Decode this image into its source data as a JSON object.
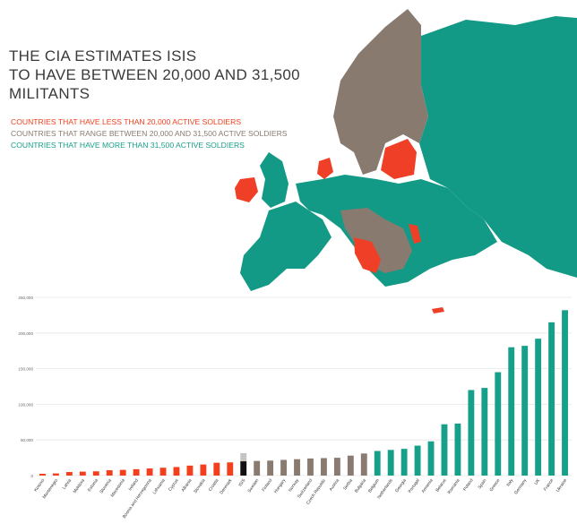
{
  "title": {
    "line1": "THE CIA ESTIMATES ISIS",
    "line2": "TO HAVE BETWEEN 20,000 AND 31,500",
    "line3": "MILITANTS"
  },
  "legend": [
    {
      "text": "COUNTRIES THAT HAVE LESS THAN 20,000 ACTIVE SOLDIERS",
      "color": "#f2401e"
    },
    {
      "text": "COUNTRIES THAT RANGE BETWEEN  20,000  AND 31,500 ACTIVE SOLDIERS",
      "color": "#8a7b70"
    },
    {
      "text": "COUNTRIES THAT HAVE  MORE THAN 31,500 ACTIVE SOLDIERS",
      "color": "#16a08a"
    }
  ],
  "colors": {
    "red": "#f2401e",
    "brown": "#8a7b70",
    "teal": "#16a08a",
    "black": "#111111",
    "isis_range": "#c4c4c4",
    "grid": "#e6e6e6",
    "map_teal": "#139a86",
    "map_brown": "#897a6f",
    "map_red": "#ef3f26"
  },
  "chart_data": {
    "type": "bar",
    "title": "",
    "xlabel": "",
    "ylabel": "",
    "ylim": [
      0,
      250000
    ],
    "yticks": [
      0,
      50000,
      100000,
      150000,
      200000,
      250000
    ],
    "ytick_labels": [
      "0",
      "50,000",
      "100,000",
      "150,000",
      "200,000",
      "250,000"
    ],
    "categories": [
      "Kosovo",
      "Montenegro",
      "Latvia",
      "Moldova",
      "Estonia",
      "Slovenia",
      "Macedonia",
      "Ireland",
      "Bosnia and Herzegovina",
      "Lithuania",
      "Cyprus",
      "Albania",
      "Slovakia",
      "Croatia",
      "Denmark",
      "ISIS",
      "Sweden",
      "Finland",
      "Hungary",
      "Norway",
      "Switzerland",
      "Czech Republic",
      "Austria",
      "Serbia",
      "Bulgaria",
      "Belgium",
      "Netherlands",
      "Georgia",
      "Portugal",
      "Armenia",
      "Belarus",
      "Romania",
      "Poland",
      "Spain",
      "Greece",
      "Italy",
      "Germany",
      "UK",
      "France",
      "Ukraine"
    ],
    "values": [
      2500,
      3000,
      5000,
      5500,
      6000,
      7500,
      8000,
      9000,
      10000,
      11000,
      12000,
      14000,
      15500,
      18000,
      18500,
      20000,
      20500,
      21000,
      22000,
      23000,
      24000,
      24500,
      25000,
      28000,
      31000,
      34500,
      36000,
      37500,
      42000,
      48000,
      72000,
      73000,
      120000,
      123000,
      145000,
      180000,
      182000,
      192000,
      215000,
      232000
    ],
    "groups": [
      "red",
      "red",
      "red",
      "red",
      "red",
      "red",
      "red",
      "red",
      "red",
      "red",
      "red",
      "red",
      "red",
      "red",
      "red",
      "black",
      "brown",
      "brown",
      "brown",
      "brown",
      "brown",
      "brown",
      "brown",
      "brown",
      "brown",
      "teal",
      "teal",
      "teal",
      "teal",
      "teal",
      "teal",
      "teal",
      "teal",
      "teal",
      "teal",
      "teal",
      "teal",
      "teal",
      "teal",
      "teal"
    ],
    "isis_range": [
      20000,
      31500
    ]
  }
}
